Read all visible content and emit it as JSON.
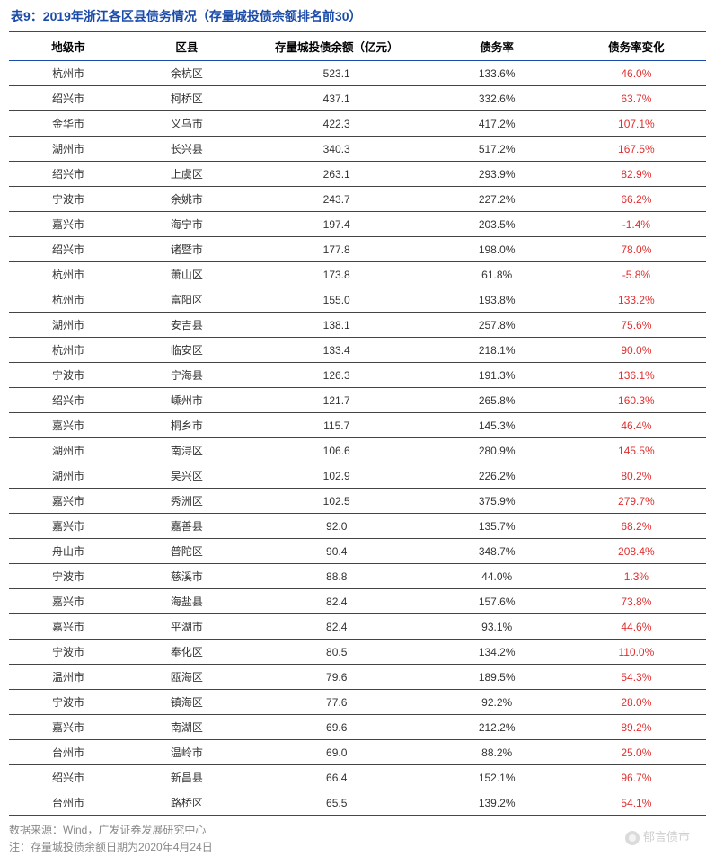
{
  "title": "表9：2019年浙江各区县债务情况（存量城投债余额排名前30）",
  "columns": [
    "地级市",
    "区县",
    "存量城投债余额（亿元）",
    "债务率",
    "债务率变化"
  ],
  "col_widths": [
    "17%",
    "17%",
    "26%",
    "20%",
    "20%"
  ],
  "change_color": "#e03030",
  "rows": [
    [
      "杭州市",
      "余杭区",
      "523.1",
      "133.6%",
      "46.0%"
    ],
    [
      "绍兴市",
      "柯桥区",
      "437.1",
      "332.6%",
      "63.7%"
    ],
    [
      "金华市",
      "义乌市",
      "422.3",
      "417.2%",
      "107.1%"
    ],
    [
      "湖州市",
      "长兴县",
      "340.3",
      "517.2%",
      "167.5%"
    ],
    [
      "绍兴市",
      "上虞区",
      "263.1",
      "293.9%",
      "82.9%"
    ],
    [
      "宁波市",
      "余姚市",
      "243.7",
      "227.2%",
      "66.2%"
    ],
    [
      "嘉兴市",
      "海宁市",
      "197.4",
      "203.5%",
      "-1.4%"
    ],
    [
      "绍兴市",
      "诸暨市",
      "177.8",
      "198.0%",
      "78.0%"
    ],
    [
      "杭州市",
      "萧山区",
      "173.8",
      "61.8%",
      "-5.8%"
    ],
    [
      "杭州市",
      "富阳区",
      "155.0",
      "193.8%",
      "133.2%"
    ],
    [
      "湖州市",
      "安吉县",
      "138.1",
      "257.8%",
      "75.6%"
    ],
    [
      "杭州市",
      "临安区",
      "133.4",
      "218.1%",
      "90.0%"
    ],
    [
      "宁波市",
      "宁海县",
      "126.3",
      "191.3%",
      "136.1%"
    ],
    [
      "绍兴市",
      "嵊州市",
      "121.7",
      "265.8%",
      "160.3%"
    ],
    [
      "嘉兴市",
      "桐乡市",
      "115.7",
      "145.3%",
      "46.4%"
    ],
    [
      "湖州市",
      "南浔区",
      "106.6",
      "280.9%",
      "145.5%"
    ],
    [
      "湖州市",
      "吴兴区",
      "102.9",
      "226.2%",
      "80.2%"
    ],
    [
      "嘉兴市",
      "秀洲区",
      "102.5",
      "375.9%",
      "279.7%"
    ],
    [
      "嘉兴市",
      "嘉善县",
      "92.0",
      "135.7%",
      "68.2%"
    ],
    [
      "舟山市",
      "普陀区",
      "90.4",
      "348.7%",
      "208.4%"
    ],
    [
      "宁波市",
      "慈溪市",
      "88.8",
      "44.0%",
      "1.3%"
    ],
    [
      "嘉兴市",
      "海盐县",
      "82.4",
      "157.6%",
      "73.8%"
    ],
    [
      "嘉兴市",
      "平湖市",
      "82.4",
      "93.1%",
      "44.6%"
    ],
    [
      "宁波市",
      "奉化区",
      "80.5",
      "134.2%",
      "110.0%"
    ],
    [
      "温州市",
      "瓯海区",
      "79.6",
      "189.5%",
      "54.3%"
    ],
    [
      "宁波市",
      "镇海区",
      "77.6",
      "92.2%",
      "28.0%"
    ],
    [
      "嘉兴市",
      "南湖区",
      "69.6",
      "212.2%",
      "89.2%"
    ],
    [
      "台州市",
      "温岭市",
      "69.0",
      "88.2%",
      "25.0%"
    ],
    [
      "绍兴市",
      "新昌县",
      "66.4",
      "152.1%",
      "96.7%"
    ],
    [
      "台州市",
      "路桥区",
      "65.5",
      "139.2%",
      "54.1%"
    ]
  ],
  "footer": {
    "source": "数据来源：Wind，广发证券发展研究中心",
    "note": "注：存量城投债余额日期为2020年4月24日"
  },
  "watermark": "郁言债市"
}
